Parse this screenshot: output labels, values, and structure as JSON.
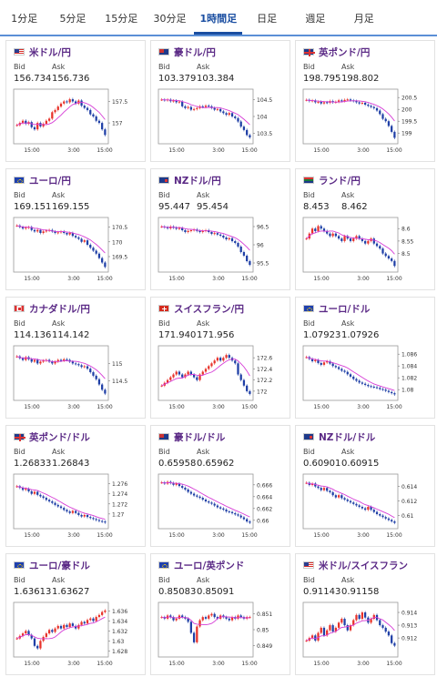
{
  "tabs": [
    {
      "label": "1分足"
    },
    {
      "label": "5分足"
    },
    {
      "label": "15分足"
    },
    {
      "label": "30分足"
    },
    {
      "label": "1時間足",
      "active": true
    },
    {
      "label": "日足"
    },
    {
      "label": "週足"
    },
    {
      "label": "月足"
    }
  ],
  "labels": {
    "bid": "Bid",
    "ask": "Ask"
  },
  "colors": {
    "up": "#e8322a",
    "down": "#1f3fa6",
    "ma": "#d63cd6",
    "ma2": "#3b82f6",
    "title": "#5b2a86"
  },
  "cards": [
    {
      "pair": "米ドル/円",
      "flag": "us",
      "bid": "156.734",
      "ask": "156.736",
      "yticks": [
        "157.5",
        "157"
      ],
      "xticks": [
        "15:00",
        "3:00",
        "15:00"
      ],
      "ylim": [
        156.6,
        157.7
      ],
      "chart_data": {
        "type": "line",
        "closes": [
          156.95,
          157.0,
          157.05,
          156.98,
          157.02,
          156.9,
          156.85,
          157.0,
          156.92,
          156.98,
          157.05,
          157.1,
          157.25,
          157.3,
          157.38,
          157.45,
          157.5,
          157.48,
          157.55,
          157.5,
          157.45,
          157.52,
          157.4,
          157.35,
          157.3,
          157.2,
          157.15,
          157.05,
          157.0,
          156.85,
          156.72
        ]
      }
    },
    {
      "pair": "豪ドル/円",
      "flag": "au",
      "bid": "103.379",
      "ask": "103.384",
      "yticks": [
        "104.5",
        "104",
        "103.5"
      ],
      "xticks": [
        "15:00",
        "3:00",
        "15:00"
      ],
      "ylim": [
        103.3,
        104.7
      ],
      "chart_data": {
        "type": "line",
        "closes": [
          104.5,
          104.48,
          104.5,
          104.45,
          104.47,
          104.42,
          104.44,
          104.3,
          104.25,
          104.28,
          104.2,
          104.22,
          104.25,
          104.3,
          104.28,
          104.32,
          104.3,
          104.25,
          104.2,
          104.22,
          104.15,
          104.1,
          104.05,
          104.1,
          104.0,
          103.95,
          103.85,
          103.7,
          103.6,
          103.45,
          103.38
        ]
      }
    },
    {
      "pair": "英ポンド/円",
      "flag": "gb",
      "bid": "198.795",
      "ask": "198.802",
      "yticks": [
        "200.5",
        "200",
        "199.5",
        "199"
      ],
      "xticks": [
        "15:00",
        "3:00",
        "15:00"
      ],
      "ylim": [
        198.7,
        200.7
      ],
      "chart_data": {
        "type": "line",
        "closes": [
          200.4,
          200.35,
          200.38,
          200.3,
          200.32,
          200.25,
          200.3,
          200.28,
          200.35,
          200.3,
          200.32,
          200.38,
          200.35,
          200.4,
          200.42,
          200.38,
          200.35,
          200.3,
          200.25,
          200.28,
          200.2,
          200.15,
          200.1,
          200.05,
          199.95,
          199.8,
          199.6,
          199.5,
          199.3,
          199.05,
          198.8
        ]
      }
    },
    {
      "pair": "ユーロ/円",
      "flag": "eu",
      "bid": "169.151",
      "ask": "169.155",
      "yticks": [
        "170.5",
        "170",
        "169.5"
      ],
      "xticks": [
        "15:00",
        "3:00",
        "15:00"
      ],
      "ylim": [
        169.1,
        170.7
      ],
      "chart_data": {
        "type": "line",
        "closes": [
          170.55,
          170.5,
          170.45,
          170.48,
          170.5,
          170.4,
          170.35,
          170.4,
          170.3,
          170.35,
          170.38,
          170.4,
          170.35,
          170.3,
          170.32,
          170.35,
          170.3,
          170.25,
          170.3,
          170.2,
          170.15,
          170.1,
          170.0,
          170.05,
          169.9,
          169.8,
          169.7,
          169.6,
          169.45,
          169.3,
          169.15
        ]
      }
    },
    {
      "pair": "NZドル/円",
      "flag": "nz",
      "bid": "95.447",
      "ask": "95.454",
      "yticks": [
        "96.5",
        "96",
        "95.5"
      ],
      "xticks": [
        "15:00",
        "3:00",
        "15:00"
      ],
      "ylim": [
        95.35,
        96.65
      ],
      "chart_data": {
        "type": "line",
        "closes": [
          96.5,
          96.48,
          96.45,
          96.5,
          96.47,
          96.44,
          96.46,
          96.4,
          96.35,
          96.38,
          96.4,
          96.42,
          96.38,
          96.35,
          96.38,
          96.4,
          96.35,
          96.3,
          96.32,
          96.28,
          96.25,
          96.2,
          96.15,
          96.18,
          96.1,
          96.05,
          95.95,
          95.8,
          95.7,
          95.55,
          95.45
        ]
      }
    },
    {
      "pair": "ランド/円",
      "flag": "za",
      "bid": "8.453",
      "ask": "8.462",
      "yticks": [
        "8.6",
        "8.55",
        "8.5"
      ],
      "xticks": [
        "15:00",
        "3:00",
        "15:00"
      ],
      "ylim": [
        8.44,
        8.63
      ],
      "chart_data": {
        "type": "line",
        "closes": [
          8.56,
          8.58,
          8.6,
          8.59,
          8.61,
          8.6,
          8.59,
          8.58,
          8.57,
          8.58,
          8.57,
          8.56,
          8.55,
          8.57,
          8.56,
          8.55,
          8.56,
          8.57,
          8.56,
          8.55,
          8.54,
          8.55,
          8.56,
          8.54,
          8.53,
          8.52,
          8.5,
          8.49,
          8.48,
          8.47,
          8.45
        ]
      }
    },
    {
      "pair": "カナダドル/円",
      "flag": "ca",
      "bid": "114.136",
      "ask": "114.142",
      "yticks": [
        "115",
        "114.5"
      ],
      "xticks": [
        "15:00",
        "3:00",
        "15:00"
      ],
      "ylim": [
        114.05,
        115.4
      ],
      "chart_data": {
        "type": "line",
        "closes": [
          115.2,
          115.15,
          115.1,
          115.18,
          115.12,
          115.05,
          115.1,
          115.0,
          115.05,
          115.08,
          115.1,
          115.05,
          115.0,
          115.05,
          115.1,
          115.08,
          115.12,
          115.1,
          115.05,
          115.0,
          114.98,
          114.95,
          114.9,
          114.92,
          114.85,
          114.75,
          114.65,
          114.55,
          114.4,
          114.25,
          114.14
        ]
      }
    },
    {
      "pair": "スイスフラン/円",
      "flag": "ch",
      "bid": "171.940",
      "ask": "171.956",
      "yticks": [
        "172.6",
        "172.4",
        "172.2",
        "172"
      ],
      "xticks": [
        "15:00",
        "3:00",
        "15:00"
      ],
      "ylim": [
        171.9,
        172.75
      ],
      "chart_data": {
        "type": "line",
        "closes": [
          172.1,
          172.15,
          172.2,
          172.25,
          172.3,
          172.35,
          172.3,
          172.25,
          172.3,
          172.35,
          172.3,
          172.25,
          172.2,
          172.3,
          172.35,
          172.4,
          172.45,
          172.5,
          172.55,
          172.6,
          172.55,
          172.6,
          172.65,
          172.6,
          172.55,
          172.5,
          172.3,
          172.2,
          172.1,
          172.0,
          171.95
        ]
      }
    },
    {
      "pair": "ユーロ/ドル",
      "flag": "eu",
      "bid": "1.07923",
      "ask": "1.07926",
      "yticks": [
        "1.086",
        "1.084",
        "1.082",
        "1.08"
      ],
      "xticks": [
        "15:00",
        "3:00",
        "15:00"
      ],
      "ylim": [
        1.0788,
        1.0868
      ],
      "chart_data": {
        "type": "line",
        "closes": [
          1.0855,
          1.0852,
          1.0848,
          1.085,
          1.0845,
          1.0842,
          1.0846,
          1.0848,
          1.0844,
          1.084,
          1.0838,
          1.0835,
          1.0832,
          1.083,
          1.0826,
          1.0822,
          1.0818,
          1.0815,
          1.0812,
          1.081,
          1.0808,
          1.0806,
          1.0805,
          1.0804,
          1.0803,
          1.0801,
          1.08,
          1.0798,
          1.0796,
          1.0794,
          1.0792
        ]
      }
    },
    {
      "pair": "英ポンド/ドル",
      "flag": "gb",
      "bid": "1.26833",
      "ask": "1.26843",
      "yticks": [
        "1.276",
        "1.274",
        "1.272",
        "1.27"
      ],
      "xticks": [
        "15:00",
        "3:00",
        "15:00"
      ],
      "ylim": [
        1.2678,
        1.2772
      ],
      "chart_data": {
        "type": "line",
        "closes": [
          1.2755,
          1.2752,
          1.2748,
          1.275,
          1.2745,
          1.274,
          1.2744,
          1.2738,
          1.2735,
          1.2732,
          1.2728,
          1.2725,
          1.2722,
          1.2718,
          1.2715,
          1.2712,
          1.2708,
          1.2705,
          1.2702,
          1.2706,
          1.2702,
          1.2698,
          1.2695,
          1.2698,
          1.2694,
          1.2692,
          1.269,
          1.2688,
          1.2686,
          1.2685,
          1.2683
        ]
      }
    },
    {
      "pair": "豪ドル/ドル",
      "flag": "au",
      "bid": "0.65958",
      "ask": "0.65962",
      "yticks": [
        "0.666",
        "0.664",
        "0.662",
        "0.66"
      ],
      "xticks": [
        "15:00",
        "3:00",
        "15:00"
      ],
      "ylim": [
        0.6592,
        0.6672
      ],
      "chart_data": {
        "type": "line",
        "closes": [
          0.6664,
          0.6662,
          0.6665,
          0.6663,
          0.666,
          0.6662,
          0.6658,
          0.6655,
          0.6652,
          0.6648,
          0.6645,
          0.6642,
          0.664,
          0.6638,
          0.6635,
          0.6632,
          0.663,
          0.6628,
          0.6625,
          0.6622,
          0.662,
          0.6618,
          0.6615,
          0.6614,
          0.6612,
          0.661,
          0.6608,
          0.6605,
          0.6602,
          0.6598,
          0.6596
        ]
      }
    },
    {
      "pair": "NZドル/ドル",
      "flag": "nz",
      "bid": "0.60901",
      "ask": "0.60915",
      "yticks": [
        "0.614",
        "0.612",
        "0.61"
      ],
      "xticks": [
        "15:00",
        "3:00",
        "15:00"
      ],
      "ylim": [
        0.6087,
        0.6152
      ],
      "chart_data": {
        "type": "line",
        "closes": [
          0.6145,
          0.6142,
          0.6144,
          0.614,
          0.6138,
          0.6135,
          0.6138,
          0.6134,
          0.6132,
          0.6128,
          0.6125,
          0.6128,
          0.6124,
          0.6122,
          0.612,
          0.6118,
          0.6116,
          0.6114,
          0.6112,
          0.611,
          0.6108,
          0.6112,
          0.6108,
          0.6105,
          0.6102,
          0.61,
          0.6098,
          0.6096,
          0.6094,
          0.6092,
          0.609
        ]
      }
    },
    {
      "pair": "ユーロ/豪ドル",
      "flag": "eu",
      "bid": "1.63613",
      "ask": "1.63627",
      "yticks": [
        "1.636",
        "1.634",
        "1.632",
        "1.63",
        "1.628"
      ],
      "xticks": [
        "15:00",
        "3:00",
        "15:00"
      ],
      "ylim": [
        1.6275,
        1.637
      ],
      "chart_data": {
        "type": "line",
        "closes": [
          1.6305,
          1.631,
          1.6315,
          1.632,
          1.6312,
          1.6305,
          1.629,
          1.6285,
          1.63,
          1.6308,
          1.6315,
          1.6322,
          1.6318,
          1.6325,
          1.633,
          1.6325,
          1.6332,
          1.6328,
          1.6335,
          1.633,
          1.6325,
          1.6332,
          1.6338,
          1.6335,
          1.6342,
          1.6345,
          1.634,
          1.6348,
          1.6352,
          1.6358,
          1.6361
        ]
      }
    },
    {
      "pair": "ユーロ/英ポンド",
      "flag": "eu",
      "bid": "0.85083",
      "ask": "0.85091",
      "yticks": [
        "0.851",
        "0.85",
        "0.849"
      ],
      "xticks": [
        "15:00",
        "3:00",
        "15:00"
      ],
      "ylim": [
        0.8485,
        0.8515
      ],
      "chart_data": {
        "type": "line",
        "closes": [
          0.8508,
          0.8507,
          0.8509,
          0.8508,
          0.8506,
          0.8507,
          0.8509,
          0.8508,
          0.8507,
          0.8505,
          0.8498,
          0.8492,
          0.8502,
          0.8506,
          0.8508,
          0.8507,
          0.8509,
          0.851,
          0.8508,
          0.8507,
          0.8509,
          0.8508,
          0.8507,
          0.8506,
          0.8508,
          0.8507,
          0.8509,
          0.8508,
          0.8507,
          0.8508,
          0.8508
        ]
      }
    },
    {
      "pair": "米ドル/スイスフラン",
      "flag": "us",
      "bid": "0.91143",
      "ask": "0.91158",
      "yticks": [
        "0.914",
        "0.913",
        "0.912"
      ],
      "xticks": [
        "15:00",
        "3:00",
        "15:00"
      ],
      "ylim": [
        0.9108,
        0.9145
      ],
      "chart_data": {
        "type": "line",
        "closes": [
          0.9118,
          0.912,
          0.9122,
          0.9118,
          0.9124,
          0.9128,
          0.9122,
          0.9126,
          0.913,
          0.9125,
          0.9128,
          0.9132,
          0.9135,
          0.913,
          0.9126,
          0.913,
          0.9134,
          0.9138,
          0.9135,
          0.914,
          0.9136,
          0.9132,
          0.9135,
          0.9138,
          0.9134,
          0.913,
          0.9128,
          0.9125,
          0.9122,
          0.9116,
          0.9114
        ]
      }
    }
  ]
}
